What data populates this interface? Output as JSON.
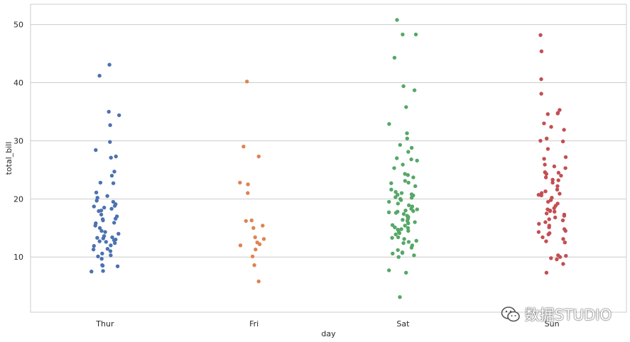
{
  "chart_data": {
    "type": "scatter",
    "subtype": "strip",
    "xlabel": "day",
    "ylabel": "total_bill",
    "categories": [
      "Thur",
      "Fri",
      "Sat",
      "Sun"
    ],
    "ylim": [
      0.5,
      53.5
    ],
    "yticks": [
      10,
      20,
      30,
      40,
      50
    ],
    "grid": "horizontal",
    "colors": [
      "#4c72b0",
      "#dd8452",
      "#55a868",
      "#c44e52"
    ],
    "series": [
      {
        "values": [
          43.1,
          41.2,
          35.0,
          34.4,
          32.7,
          29.8,
          28.4,
          27.3,
          27.1,
          24.7,
          24.0,
          22.8,
          22.7,
          21.1,
          20.5,
          20.2,
          19.7,
          19.5,
          19.1,
          18.8,
          18.7,
          18.5,
          18.3,
          18.0,
          17.9,
          17.3,
          17.0,
          16.6,
          16.5,
          16.3,
          15.9,
          15.8,
          15.4,
          15.0,
          14.5,
          14.3,
          14.0,
          13.6,
          13.4,
          13.3,
          13.2,
          13.0,
          12.9,
          12.7,
          12.6,
          12.4,
          12.0,
          11.9,
          11.4,
          11.3,
          11.0,
          10.6,
          10.3,
          10.1,
          9.7,
          8.6,
          8.5,
          8.4,
          7.6,
          7.5
        ]
      },
      {
        "values": [
          40.2,
          29.0,
          27.3,
          22.8,
          22.5,
          21.0,
          16.3,
          16.2,
          15.4,
          15.0,
          13.4,
          13.1,
          12.5,
          12.2,
          12.0,
          11.3,
          10.1,
          8.6,
          5.8
        ]
      },
      {
        "values": [
          50.8,
          48.3,
          48.3,
          44.3,
          39.4,
          38.7,
          35.8,
          32.9,
          31.3,
          30.4,
          29.3,
          28.8,
          28.1,
          27.0,
          26.8,
          26.6,
          25.9,
          25.3,
          24.3,
          24.1,
          23.7,
          23.1,
          22.8,
          22.7,
          22.2,
          21.6,
          21.2,
          21.0,
          20.8,
          20.7,
          20.6,
          20.3,
          20.2,
          20.0,
          19.8,
          19.5,
          19.2,
          18.9,
          18.7,
          18.3,
          18.2,
          18.0,
          17.9,
          17.8,
          17.7,
          17.6,
          17.4,
          17.1,
          16.9,
          16.6,
          16.4,
          16.2,
          16.0,
          15.8,
          15.5,
          15.4,
          15.1,
          15.0,
          14.8,
          14.7,
          14.5,
          14.3,
          14.1,
          13.9,
          13.4,
          13.3,
          13.1,
          12.8,
          12.6,
          12.4,
          12.0,
          11.6,
          11.2,
          10.8,
          10.7,
          10.6,
          10.3,
          10.0,
          7.7,
          7.3,
          3.1
        ]
      },
      {
        "values": [
          48.2,
          45.4,
          40.6,
          38.1,
          35.3,
          34.8,
          34.7,
          34.6,
          33.0,
          32.4,
          31.9,
          30.4,
          30.0,
          29.9,
          28.6,
          27.2,
          26.9,
          25.9,
          25.6,
          25.3,
          24.6,
          24.5,
          24.3,
          24.0,
          23.7,
          23.3,
          23.2,
          22.8,
          22.2,
          21.6,
          21.3,
          21.0,
          20.9,
          20.7,
          20.6,
          20.2,
          19.8,
          19.5,
          19.2,
          18.8,
          18.4,
          18.2,
          18.0,
          17.9,
          17.8,
          17.5,
          17.3,
          17.1,
          16.8,
          16.5,
          16.3,
          16.0,
          15.7,
          15.4,
          15.1,
          14.8,
          14.5,
          14.3,
          14.1,
          13.9,
          13.4,
          13.1,
          12.7,
          12.5,
          10.3,
          10.2,
          10.0,
          9.8,
          9.6,
          8.8,
          7.3
        ]
      }
    ]
  },
  "watermark": {
    "text": "数据STUDIO",
    "icon": "wechat-icon"
  }
}
